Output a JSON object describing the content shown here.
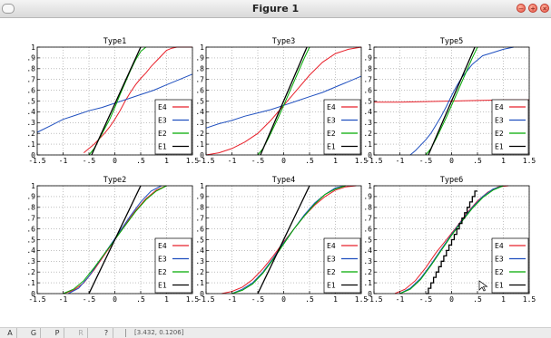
{
  "window": {
    "title": "Figure 1"
  },
  "statusbar": {
    "buttons": [
      {
        "label": "A",
        "enabled": true
      },
      {
        "label": "G",
        "enabled": true
      },
      {
        "label": "P",
        "enabled": true
      },
      {
        "label": "R",
        "enabled": false
      },
      {
        "label": "?",
        "enabled": true
      }
    ],
    "coords": "[3.432, 0.1206]"
  },
  "colors": {
    "E1": "#000000",
    "E2": "#00aa00",
    "E3": "#1f4fbf",
    "E4": "#e8202a"
  },
  "chart_data": [
    {
      "type": "line",
      "title": "Type1",
      "xlim": [
        -1.5,
        1.5
      ],
      "ylim": [
        0,
        1
      ],
      "xticks": [
        -1.5,
        -1,
        -0.5,
        0,
        0.5,
        1,
        1.5
      ],
      "yticks": [
        0,
        0.1,
        0.2,
        0.3,
        0.4,
        0.5,
        0.6,
        0.7,
        0.8,
        0.9,
        1
      ],
      "grid": true,
      "legend_position": "lower-right",
      "series": [
        {
          "name": "E4",
          "x": [
            -0.6,
            -0.5,
            -0.4,
            -0.3,
            -0.2,
            -0.1,
            0,
            0.1,
            0.2,
            0.3,
            0.4,
            0.5,
            0.6,
            0.7,
            0.8,
            0.9,
            1,
            1.1,
            1.2,
            1.3,
            1.4,
            1.5
          ],
          "y": [
            0.02,
            0.06,
            0.1,
            0.15,
            0.2,
            0.26,
            0.33,
            0.41,
            0.5,
            0.58,
            0.65,
            0.71,
            0.76,
            0.82,
            0.87,
            0.92,
            0.97,
            0.99,
            1,
            1,
            1,
            1
          ]
        },
        {
          "name": "E3",
          "x": [
            -1.5,
            -1.25,
            -1,
            -0.75,
            -0.5,
            -0.25,
            0,
            0.25,
            0.5,
            0.75,
            1,
            1.25,
            1.5
          ],
          "y": [
            0.21,
            0.27,
            0.33,
            0.37,
            0.41,
            0.44,
            0.48,
            0.52,
            0.56,
            0.6,
            0.65,
            0.7,
            0.75
          ]
        },
        {
          "name": "E2",
          "x": [
            -0.5,
            -0.4,
            -0.3,
            -0.2,
            -0.1,
            0,
            0.1,
            0.2,
            0.3,
            0.4,
            0.5,
            0.6
          ],
          "y": [
            0,
            0.06,
            0.15,
            0.24,
            0.33,
            0.44,
            0.56,
            0.67,
            0.78,
            0.88,
            0.96,
            1
          ]
        },
        {
          "name": "E1",
          "x": [
            -0.45,
            0.5
          ],
          "y": [
            0,
            1
          ]
        }
      ]
    },
    {
      "type": "line",
      "title": "Type3",
      "xlim": [
        -1.5,
        1.5
      ],
      "ylim": [
        0,
        1
      ],
      "xticks": [
        -1.5,
        -1,
        -0.5,
        0,
        0.5,
        1,
        1.5
      ],
      "yticks": [
        0,
        0.1,
        0.2,
        0.3,
        0.4,
        0.5,
        0.6,
        0.7,
        0.8,
        0.9,
        1
      ],
      "grid": true,
      "legend_position": "lower-right",
      "series": [
        {
          "name": "E4",
          "x": [
            -1.5,
            -1.25,
            -1,
            -0.75,
            -0.5,
            -0.25,
            0,
            0.25,
            0.5,
            0.75,
            1,
            1.25,
            1.5
          ],
          "y": [
            0,
            0.02,
            0.06,
            0.12,
            0.2,
            0.32,
            0.46,
            0.6,
            0.74,
            0.86,
            0.94,
            0.98,
            1
          ]
        },
        {
          "name": "E3",
          "x": [
            -1.5,
            -1.25,
            -1,
            -0.75,
            -0.5,
            -0.25,
            0,
            0.25,
            0.5,
            0.75,
            1,
            1.25,
            1.5
          ],
          "y": [
            0.25,
            0.29,
            0.32,
            0.36,
            0.39,
            0.42,
            0.46,
            0.5,
            0.54,
            0.58,
            0.63,
            0.68,
            0.73
          ]
        },
        {
          "name": "E2",
          "x": [
            -0.5,
            -0.4,
            -0.3,
            -0.2,
            -0.1,
            0,
            0.1,
            0.2,
            0.3,
            0.4,
            0.5
          ],
          "y": [
            0,
            0.06,
            0.15,
            0.25,
            0.35,
            0.46,
            0.57,
            0.68,
            0.79,
            0.9,
            1
          ]
        },
        {
          "name": "E1",
          "x": [
            -0.45,
            0.45
          ],
          "y": [
            0,
            1
          ]
        }
      ]
    },
    {
      "type": "line",
      "title": "Type5",
      "xlim": [
        -1.5,
        1.5
      ],
      "ylim": [
        0,
        1
      ],
      "xticks": [
        -1.5,
        -1,
        -0.5,
        0,
        0.5,
        1,
        1.5
      ],
      "yticks": [
        0,
        0.1,
        0.2,
        0.3,
        0.4,
        0.5,
        0.6,
        0.7,
        0.8,
        0.9,
        1
      ],
      "grid": true,
      "legend_position": "lower-right",
      "series": [
        {
          "name": "E4",
          "x": [
            -1.5,
            -1,
            -0.5,
            0,
            0.5,
            1,
            1.5
          ],
          "y": [
            0.49,
            0.49,
            0.495,
            0.5,
            0.505,
            0.51,
            0.51
          ]
        },
        {
          "name": "E3",
          "x": [
            -0.8,
            -0.7,
            -0.6,
            -0.5,
            -0.4,
            -0.3,
            -0.2,
            -0.1,
            0,
            0.1,
            0.2,
            0.3,
            0.4,
            0.5,
            0.6,
            0.8,
            1,
            1.2
          ],
          "y": [
            0,
            0.04,
            0.09,
            0.14,
            0.2,
            0.28,
            0.36,
            0.45,
            0.55,
            0.64,
            0.72,
            0.78,
            0.84,
            0.88,
            0.92,
            0.95,
            0.98,
            1
          ]
        },
        {
          "name": "E2",
          "x": [
            -0.5,
            -0.4,
            -0.3,
            -0.2,
            -0.1,
            0,
            0.1,
            0.2,
            0.3,
            0.4,
            0.5
          ],
          "y": [
            0,
            0.06,
            0.15,
            0.25,
            0.35,
            0.46,
            0.57,
            0.68,
            0.79,
            0.9,
            1
          ]
        },
        {
          "name": "E1",
          "x": [
            -0.45,
            0.45
          ],
          "y": [
            0,
            1
          ]
        }
      ]
    },
    {
      "type": "line",
      "title": "Type2",
      "xlim": [
        -1.5,
        1.5
      ],
      "ylim": [
        0,
        1
      ],
      "xticks": [
        -1.5,
        -1,
        -0.5,
        0,
        0.5,
        1,
        1.5
      ],
      "yticks": [
        0,
        0.1,
        0.2,
        0.3,
        0.4,
        0.5,
        0.6,
        0.7,
        0.8,
        0.9,
        1
      ],
      "grid": true,
      "legend_position": "lower-right",
      "series": [
        {
          "name": "E4",
          "x": [
            -1,
            -0.8,
            -0.6,
            -0.4,
            -0.2,
            0,
            0.2,
            0.4,
            0.6,
            0.8,
            1
          ],
          "y": [
            0,
            0.03,
            0.1,
            0.22,
            0.36,
            0.5,
            0.64,
            0.77,
            0.88,
            0.96,
            1
          ]
        },
        {
          "name": "E3",
          "x": [
            -0.9,
            -0.7,
            -0.5,
            -0.3,
            -0.1,
            0.1,
            0.3,
            0.5,
            0.7,
            0.9
          ],
          "y": [
            0,
            0.05,
            0.16,
            0.3,
            0.44,
            0.58,
            0.72,
            0.85,
            0.95,
            1
          ]
        },
        {
          "name": "E2",
          "x": [
            -1,
            -0.8,
            -0.6,
            -0.4,
            -0.2,
            0,
            0.2,
            0.4,
            0.6,
            0.8,
            1
          ],
          "y": [
            0,
            0.04,
            0.12,
            0.24,
            0.37,
            0.5,
            0.63,
            0.76,
            0.87,
            0.95,
            1
          ]
        },
        {
          "name": "E1",
          "x": [
            -0.5,
            0.5
          ],
          "y": [
            0,
            1
          ]
        }
      ]
    },
    {
      "type": "line",
      "title": "Type4",
      "xlim": [
        -1.5,
        1.5
      ],
      "ylim": [
        0,
        1
      ],
      "xticks": [
        -1.5,
        -1,
        -0.5,
        0,
        0.5,
        1,
        1.5
      ],
      "yticks": [
        0,
        0.1,
        0.2,
        0.3,
        0.4,
        0.5,
        0.6,
        0.7,
        0.8,
        0.9,
        1
      ],
      "grid": true,
      "legend_position": "lower-right",
      "series": [
        {
          "name": "E4",
          "x": [
            -1.2,
            -1,
            -0.8,
            -0.6,
            -0.4,
            -0.2,
            0,
            0.2,
            0.4,
            0.6,
            0.8,
            1,
            1.2,
            1.4
          ],
          "y": [
            0,
            0.02,
            0.06,
            0.13,
            0.23,
            0.35,
            0.48,
            0.6,
            0.72,
            0.82,
            0.9,
            0.96,
            0.99,
            1
          ]
        },
        {
          "name": "E3",
          "x": [
            -1,
            -0.8,
            -0.6,
            -0.4,
            -0.2,
            0,
            0.2,
            0.4,
            0.6,
            0.8,
            1,
            1.2
          ],
          "y": [
            0,
            0.04,
            0.1,
            0.2,
            0.33,
            0.47,
            0.6,
            0.73,
            0.84,
            0.92,
            0.98,
            1
          ]
        },
        {
          "name": "E2",
          "x": [
            -1,
            -0.8,
            -0.6,
            -0.4,
            -0.2,
            0,
            0.2,
            0.4,
            0.6,
            0.8,
            1,
            1.2
          ],
          "y": [
            0,
            0.03,
            0.09,
            0.19,
            0.32,
            0.46,
            0.6,
            0.72,
            0.83,
            0.92,
            0.97,
            1
          ]
        },
        {
          "name": "E1",
          "x": [
            -0.5,
            0.5
          ],
          "y": [
            0,
            1
          ]
        }
      ]
    },
    {
      "type": "line",
      "title": "Type6",
      "xlim": [
        -1.5,
        1.5
      ],
      "ylim": [
        0,
        1
      ],
      "xticks": [
        -1.5,
        -1,
        -0.5,
        0,
        0.5,
        1,
        1.5
      ],
      "yticks": [
        0,
        0.1,
        0.2,
        0.3,
        0.4,
        0.5,
        0.6,
        0.7,
        0.8,
        0.9,
        1
      ],
      "grid": true,
      "legend_position": "lower-right",
      "series": [
        {
          "name": "E4",
          "x": [
            -1.1,
            -0.9,
            -0.7,
            -0.5,
            -0.3,
            -0.1,
            0.1,
            0.3,
            0.5,
            0.7,
            0.9,
            1.1
          ],
          "y": [
            0,
            0.04,
            0.12,
            0.24,
            0.38,
            0.5,
            0.62,
            0.75,
            0.86,
            0.94,
            0.99,
            1
          ]
        },
        {
          "name": "E3",
          "x": [
            -1,
            -0.8,
            -0.6,
            -0.4,
            -0.2,
            0,
            0.2,
            0.4,
            0.6,
            0.8,
            1
          ],
          "y": [
            0,
            0.05,
            0.14,
            0.27,
            0.41,
            0.55,
            0.68,
            0.8,
            0.9,
            0.97,
            1
          ]
        },
        {
          "name": "E2",
          "x": [
            -1,
            -0.8,
            -0.6,
            -0.4,
            -0.2,
            0,
            0.2,
            0.4,
            0.6,
            0.8,
            1
          ],
          "y": [
            0,
            0.04,
            0.13,
            0.26,
            0.4,
            0.54,
            0.67,
            0.79,
            0.89,
            0.96,
            1
          ]
        },
        {
          "name": "E1",
          "x": [
            -0.5,
            -0.45,
            -0.45,
            -0.4,
            -0.4,
            -0.35,
            -0.35,
            -0.3,
            -0.3,
            -0.25,
            -0.25,
            -0.2,
            -0.2,
            -0.15,
            -0.15,
            -0.1,
            -0.1,
            -0.05,
            -0.05,
            0,
            0,
            0.05,
            0.05,
            0.1,
            0.1,
            0.15,
            0.15,
            0.2,
            0.2,
            0.25,
            0.25,
            0.3,
            0.3,
            0.35,
            0.35,
            0.4,
            0.4,
            0.45,
            0.45,
            0.5
          ],
          "y": [
            0,
            0,
            0.05,
            0.05,
            0.1,
            0.1,
            0.15,
            0.15,
            0.2,
            0.2,
            0.25,
            0.25,
            0.3,
            0.3,
            0.35,
            0.35,
            0.4,
            0.4,
            0.45,
            0.45,
            0.5,
            0.5,
            0.55,
            0.55,
            0.6,
            0.6,
            0.65,
            0.65,
            0.7,
            0.7,
            0.75,
            0.75,
            0.8,
            0.8,
            0.85,
            0.85,
            0.9,
            0.9,
            0.95,
            0.95
          ]
        }
      ]
    }
  ]
}
